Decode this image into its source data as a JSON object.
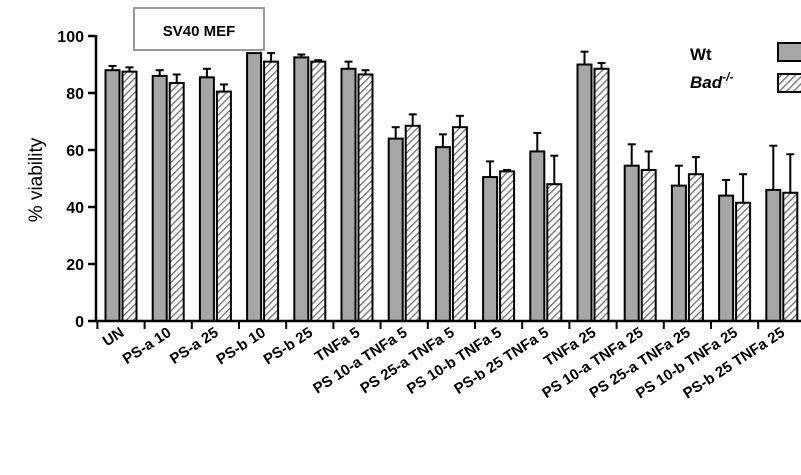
{
  "chart_data": {
    "type": "bar",
    "title": "SV40 MEF",
    "xlabel": "",
    "ylabel": "% viability",
    "ylim": [
      0,
      100
    ],
    "yticks": [
      0,
      20,
      40,
      60,
      80,
      100
    ],
    "grid": false,
    "legend_position": "top-right",
    "categories": [
      "UN",
      "PS-a 10",
      "PS-a 25",
      "PS-b 10",
      "PS-b 25",
      "TNFa 5",
      "PS 10-a TNFa 5",
      "PS 25-a TNFa 5",
      "PS 10-b TNFa 5",
      "PS-b 25 TNFa 5",
      "TNFa 25",
      "PS 10-a TNFa 25",
      "PS 25-a TNFa 25",
      "PS 10-b TNFa 25",
      "PS-b 25 TNFa 25"
    ],
    "series": [
      {
        "name": "Wt",
        "color": "#a6a6a6",
        "pattern": "solid",
        "values": [
          88,
          86,
          85.5,
          94,
          92.5,
          88.5,
          64,
          61,
          50.5,
          59.5,
          90,
          54.5,
          47.5,
          44,
          46
        ],
        "errors": [
          1.5,
          2,
          3,
          0,
          1,
          2.5,
          4,
          4.5,
          5.5,
          6.5,
          4.5,
          7.5,
          7,
          5.5,
          15.5
        ]
      },
      {
        "name": "Bad",
        "name_sup": "-/-",
        "color": "#d9d9d9",
        "pattern": "hatched",
        "values": [
          87.5,
          83.5,
          80.5,
          91,
          91,
          86.5,
          68.5,
          68,
          52.5,
          48,
          88.5,
          53,
          51.5,
          41.5,
          45
        ],
        "errors": [
          1.5,
          3,
          2.5,
          3,
          0.5,
          1.5,
          4,
          4,
          0.5,
          10,
          2,
          6.5,
          6,
          10,
          13.5
        ]
      }
    ]
  }
}
